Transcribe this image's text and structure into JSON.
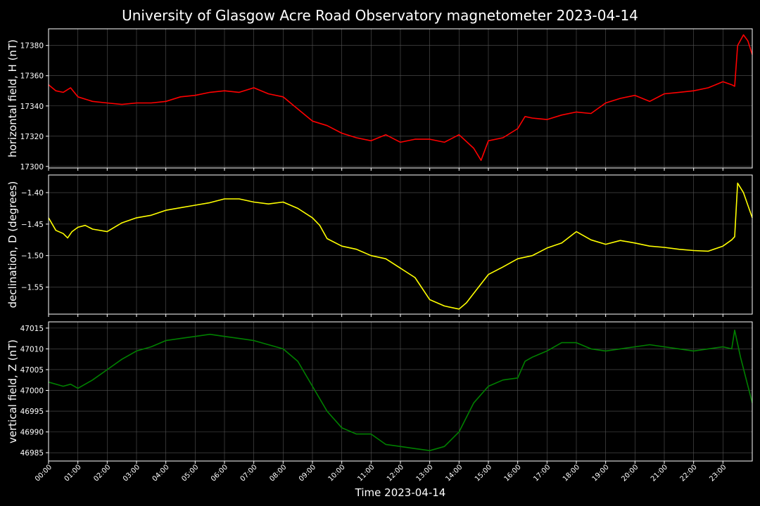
{
  "title": "University of Glasgow Acre Road Observatory magnetometer 2023-04-14",
  "xlabel": "Time 2023-04-14",
  "time_ticks": [
    "00:00",
    "01:00",
    "02:00",
    "03:00",
    "04:00",
    "05:00",
    "06:00",
    "07:00",
    "08:00",
    "09:00",
    "10:00",
    "11:00",
    "12:00",
    "13:00",
    "14:00",
    "15:00",
    "16:00",
    "17:00",
    "18:00",
    "19:00",
    "20:00",
    "21:00",
    "22:00",
    "23:00"
  ],
  "colors": {
    "background": "#000000",
    "grid": "#555555",
    "axes": "#ffffff",
    "H": "#ff0000",
    "D": "#ffff00",
    "Z": "#008000"
  },
  "chart_data": [
    {
      "type": "line",
      "ylabel": "horizontal field, H (nT)",
      "xlim": [
        0,
        24
      ],
      "ylim": [
        17299,
        17391
      ],
      "yticks": [
        17300,
        17320,
        17340,
        17360,
        17380
      ],
      "grid": true,
      "series": [
        {
          "color": "#ff0000",
          "x": [
            0,
            0.25,
            0.5,
            0.75,
            1,
            1.5,
            2,
            2.5,
            3,
            3.5,
            4,
            4.5,
            5,
            5.5,
            6,
            6.5,
            7,
            7.5,
            8,
            8.5,
            9,
            9.5,
            10,
            10.5,
            11,
            11.5,
            12,
            12.5,
            13,
            13.5,
            14,
            14.5,
            14.75,
            15,
            15.5,
            16,
            16.25,
            16.5,
            17,
            17.5,
            18,
            18.5,
            19,
            19.5,
            20,
            20.5,
            21,
            21.5,
            22,
            22.5,
            23,
            23.3,
            23.4,
            23.5,
            23.7,
            23.85,
            24
          ],
          "y": [
            17354,
            17350,
            17349,
            17352,
            17346,
            17343,
            17342,
            17341,
            17342,
            17342,
            17343,
            17346,
            17347,
            17349,
            17350,
            17349,
            17352,
            17348,
            17346,
            17338,
            17330,
            17327,
            17322,
            17319,
            17317,
            17321,
            17316,
            17318,
            17318,
            17316,
            17321,
            17312,
            17304,
            17317,
            17319,
            17325,
            17333,
            17332,
            17331,
            17334,
            17336,
            17335,
            17342,
            17345,
            17347,
            17343,
            17348,
            17349,
            17350,
            17352,
            17356,
            17354,
            17353,
            17380,
            17387,
            17383,
            17374
          ]
        }
      ]
    },
    {
      "type": "line",
      "ylabel": "declination, D (degrees)",
      "xlim": [
        0,
        24
      ],
      "ylim": [
        -1.593,
        -1.372
      ],
      "yticks": [
        -1.4,
        -1.45,
        -1.5,
        -1.55
      ],
      "yticklabels": [
        "−1.40",
        "−1.45",
        "−1.50",
        "−1.55"
      ],
      "grid": true,
      "series": [
        {
          "color": "#ffff00",
          "x": [
            0,
            0.25,
            0.5,
            0.65,
            0.8,
            1,
            1.25,
            1.5,
            2,
            2.5,
            3,
            3.5,
            4,
            4.5,
            5,
            5.5,
            6,
            6.5,
            7,
            7.5,
            8,
            8.5,
            9,
            9.25,
            9.5,
            10,
            10.5,
            11,
            11.5,
            12,
            12.5,
            13,
            13.5,
            14,
            14.25,
            14.5,
            15,
            15.5,
            16,
            16.5,
            17,
            17.5,
            18,
            18.5,
            19,
            19.5,
            20,
            20.5,
            21,
            21.5,
            22,
            22.5,
            23,
            23.3,
            23.4,
            23.5,
            23.7,
            24
          ],
          "y": [
            -1.44,
            -1.46,
            -1.465,
            -1.472,
            -1.462,
            -1.455,
            -1.452,
            -1.458,
            -1.462,
            -1.448,
            -1.44,
            -1.436,
            -1.428,
            -1.424,
            -1.42,
            -1.416,
            -1.41,
            -1.41,
            -1.415,
            -1.418,
            -1.415,
            -1.425,
            -1.44,
            -1.452,
            -1.473,
            -1.485,
            -1.49,
            -1.5,
            -1.505,
            -1.52,
            -1.535,
            -1.57,
            -1.58,
            -1.585,
            -1.575,
            -1.56,
            -1.53,
            -1.518,
            -1.505,
            -1.5,
            -1.488,
            -1.48,
            -1.462,
            -1.475,
            -1.482,
            -1.476,
            -1.48,
            -1.485,
            -1.487,
            -1.49,
            -1.492,
            -1.493,
            -1.485,
            -1.475,
            -1.47,
            -1.385,
            -1.4,
            -1.44
          ]
        }
      ]
    },
    {
      "type": "line",
      "ylabel": "vertical field, Z (nT)",
      "xlim": [
        0,
        24
      ],
      "ylim": [
        46983,
        47016.5
      ],
      "yticks": [
        46985,
        46990,
        46995,
        47000,
        47005,
        47010,
        47015
      ],
      "grid": true,
      "series": [
        {
          "color": "#008000",
          "x": [
            0,
            0.5,
            0.75,
            1,
            1.5,
            2,
            2.5,
            3,
            3.5,
            4,
            4.5,
            5,
            5.5,
            6,
            6.5,
            7,
            7.5,
            8,
            8.5,
            9,
            9.5,
            10,
            10.5,
            11,
            11.5,
            12,
            12.5,
            13,
            13.5,
            14,
            14.5,
            15,
            15.5,
            16,
            16.25,
            16.5,
            17,
            17.5,
            18,
            18.5,
            19,
            19.5,
            20,
            20.5,
            21,
            21.5,
            22,
            22.5,
            23,
            23.3,
            23.4,
            23.6,
            24
          ],
          "y": [
            47002,
            47001,
            47001.5,
            47000.5,
            47002.5,
            47005,
            47007.5,
            47009.5,
            47010.5,
            47012,
            47012.5,
            47013,
            47013.5,
            47013,
            47012.5,
            47012,
            47011,
            47010,
            47007,
            47001,
            46995,
            46991,
            46989.5,
            46989.5,
            46987,
            46986.5,
            46986,
            46985.5,
            46986.5,
            46990,
            46997,
            47001,
            47002.5,
            47003,
            47007,
            47008,
            47009.5,
            47011.5,
            47011.5,
            47010,
            47009.5,
            47010,
            47010.5,
            47011,
            47010.5,
            47010,
            47009.5,
            47010,
            47010.5,
            47010,
            47014.5,
            47008,
            46997
          ]
        }
      ]
    }
  ]
}
